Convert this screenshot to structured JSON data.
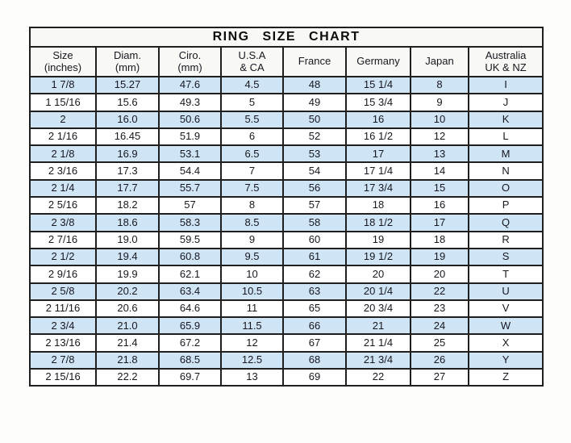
{
  "chart_data": {
    "type": "table",
    "title": "RING  SIZE  CHART",
    "columns": [
      {
        "line1": "Size",
        "line2": "(inches)"
      },
      {
        "line1": "Diam.",
        "line2": "(mm)"
      },
      {
        "line1": "Ciro.",
        "line2": "(mm)"
      },
      {
        "line1": "U.S.A",
        "line2": "& CA"
      },
      {
        "line1": "France",
        "line2": ""
      },
      {
        "line1": "Germany",
        "line2": ""
      },
      {
        "line1": "Japan",
        "line2": ""
      },
      {
        "line1": "Australia",
        "line2": "UK & NZ"
      }
    ],
    "rows": [
      [
        "1 7/8",
        "15.27",
        "47.6",
        "4.5",
        "48",
        "15 1/4",
        "8",
        "I"
      ],
      [
        "1 15/16",
        "15.6",
        "49.3",
        "5",
        "49",
        "15 3/4",
        "9",
        "J"
      ],
      [
        "2",
        "16.0",
        "50.6",
        "5.5",
        "50",
        "16",
        "10",
        "K"
      ],
      [
        "2 1/16",
        "16.45",
        "51.9",
        "6",
        "52",
        "16 1/2",
        "12",
        "L"
      ],
      [
        "2 1/8",
        "16.9",
        "53.1",
        "6.5",
        "53",
        "17",
        "13",
        "M"
      ],
      [
        "2 3/16",
        "17.3",
        "54.4",
        "7",
        "54",
        "17 1/4",
        "14",
        "N"
      ],
      [
        "2 1/4",
        "17.7",
        "55.7",
        "7.5",
        "56",
        "17 3/4",
        "15",
        "O"
      ],
      [
        "2 5/16",
        "18.2",
        "57",
        "8",
        "57",
        "18",
        "16",
        "P"
      ],
      [
        "2 3/8",
        "18.6",
        "58.3",
        "8.5",
        "58",
        "18 1/2",
        "17",
        "Q"
      ],
      [
        "2 7/16",
        "19.0",
        "59.5",
        "9",
        "60",
        "19",
        "18",
        "R"
      ],
      [
        "2 1/2",
        "19.4",
        "60.8",
        "9.5",
        "61",
        "19 1/2",
        "19",
        "S"
      ],
      [
        "2 9/16",
        "19.9",
        "62.1",
        "10",
        "62",
        "20",
        "20",
        "T"
      ],
      [
        "2 5/8",
        "20.2",
        "63.4",
        "10.5",
        "63",
        "20 1/4",
        "22",
        "U"
      ],
      [
        "2 11/16",
        "20.6",
        "64.6",
        "11",
        "65",
        "20 3/4",
        "23",
        "V"
      ],
      [
        "2 3/4",
        "21.0",
        "65.9",
        "11.5",
        "66",
        "21",
        "24",
        "W"
      ],
      [
        "2 13/16",
        "21.4",
        "67.2",
        "12",
        "67",
        "21 1/4",
        "25",
        "X"
      ],
      [
        "2 7/8",
        "21.8",
        "68.5",
        "12.5",
        "68",
        "21 3/4",
        "26",
        "Y"
      ],
      [
        "2 15/16",
        "22.2",
        "69.7",
        "13",
        "69",
        "22",
        "27",
        "Z"
      ]
    ],
    "layout": {
      "grid": true,
      "alternating_row_shading": "odd rows shaded starting with first data row",
      "columns_single_line": [
        "France",
        "Germany",
        "Japan"
      ]
    }
  },
  "colors": {
    "row_shaded_bg": "#cfe4f5",
    "row_plain_bg": "#ffffff",
    "header_bg": "#f8f8f5",
    "grid_border": "#1f1f1f",
    "text": "#17171f"
  }
}
